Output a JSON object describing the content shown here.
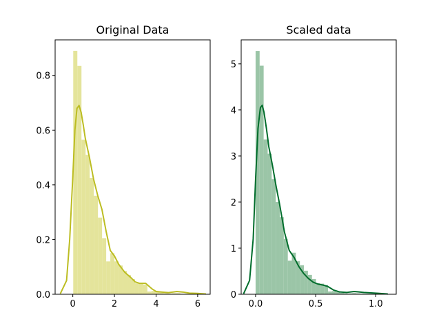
{
  "chart_data": [
    {
      "type": "histogram",
      "title": "Original Data",
      "xlim": [
        -0.85,
        6.6
      ],
      "ylim": [
        0,
        0.93
      ],
      "xticks": [
        0,
        2,
        4,
        6
      ],
      "yticks": [
        0.0,
        0.2,
        0.4,
        0.6,
        0.8
      ],
      "ytick_labels": [
        "0.0",
        "0.2",
        "0.4",
        "0.6",
        "0.8"
      ],
      "bar_color": "#e4e49b",
      "kde_color": "#bcbd22",
      "bin_start": 0.02,
      "bin_width": 0.198,
      "bar_heights": [
        0.89,
        0.835,
        0.565,
        0.51,
        0.425,
        0.36,
        0.28,
        0.205,
        0.12,
        0.15,
        0.12,
        0.105,
        0.085,
        0.07,
        0.055,
        0.04,
        0.038,
        0.035,
        0.01,
        0.012,
        0.008,
        0.006,
        0.004,
        0.003,
        0.004,
        0.004,
        0.002,
        0.002,
        0.002,
        0.002,
        0.001,
        0.001
      ],
      "kde_x": [
        -0.6,
        -0.3,
        -0.15,
        0.0,
        0.1,
        0.2,
        0.3,
        0.4,
        0.5,
        0.6,
        0.8,
        1.0,
        1.2,
        1.4,
        1.6,
        1.8,
        2.0,
        2.2,
        2.5,
        2.8,
        3.0,
        3.2,
        3.5,
        3.8,
        4.0,
        4.3,
        4.6,
        5.0,
        5.3,
        5.6,
        6.0,
        6.4
      ],
      "kde_y": [
        0.002,
        0.05,
        0.2,
        0.43,
        0.6,
        0.68,
        0.69,
        0.665,
        0.62,
        0.57,
        0.5,
        0.42,
        0.36,
        0.31,
        0.23,
        0.16,
        0.14,
        0.11,
        0.08,
        0.06,
        0.045,
        0.04,
        0.04,
        0.02,
        0.01,
        0.008,
        0.006,
        0.01,
        0.008,
        0.004,
        0.003,
        0.001
      ]
    },
    {
      "type": "histogram",
      "title": "Scaled data",
      "xlim": [
        -0.12,
        1.17
      ],
      "ylim": [
        0,
        5.52
      ],
      "xticks": [
        0.0,
        0.5,
        1.0
      ],
      "xtick_labels": [
        "0.0",
        "0.5",
        "1.0"
      ],
      "yticks": [
        0,
        1,
        2,
        3,
        4,
        5
      ],
      "bar_color": "#9bc5a7",
      "kde_color": "#006d2c",
      "bin_start": 0.0,
      "bin_width": 0.0335,
      "bar_heights": [
        5.28,
        4.96,
        3.36,
        3.05,
        2.5,
        2.0,
        1.67,
        1.2,
        0.73,
        0.9,
        0.72,
        0.63,
        0.51,
        0.42,
        0.33,
        0.24,
        0.23,
        0.2,
        0.06,
        0.07,
        0.05,
        0.03,
        0.02,
        0.02,
        0.025,
        0.02,
        0.015,
        0.012,
        0.01,
        0.01,
        0.006,
        0.004
      ],
      "kde_x": [
        -0.1,
        -0.05,
        -0.02,
        0.0,
        0.02,
        0.04,
        0.055,
        0.07,
        0.09,
        0.11,
        0.14,
        0.17,
        0.2,
        0.24,
        0.28,
        0.32,
        0.36,
        0.4,
        0.44,
        0.48,
        0.52,
        0.56,
        0.6,
        0.65,
        0.7,
        0.76,
        0.82,
        0.86,
        0.9,
        0.96,
        1.02,
        1.1
      ],
      "kde_y": [
        0.01,
        0.3,
        1.2,
        2.5,
        3.6,
        4.05,
        4.1,
        3.95,
        3.6,
        3.2,
        2.8,
        2.35,
        1.95,
        1.35,
        0.95,
        0.8,
        0.6,
        0.45,
        0.34,
        0.26,
        0.22,
        0.2,
        0.17,
        0.09,
        0.05,
        0.04,
        0.06,
        0.05,
        0.04,
        0.03,
        0.02,
        0.005
      ]
    }
  ]
}
